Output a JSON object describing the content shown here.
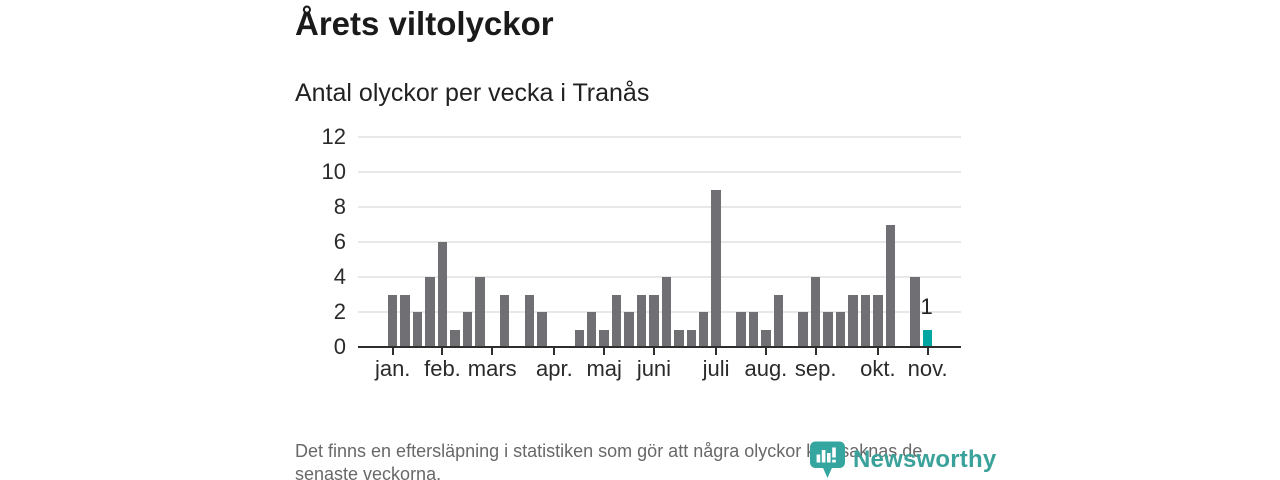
{
  "header": {
    "title": "Årets viltolyckor",
    "subtitle": "Antal olyckor per vecka i Tranås"
  },
  "chart_data": {
    "type": "bar",
    "title": "Årets viltolyckor",
    "subtitle": "Antal olyckor per vecka i Tranås",
    "x_unit": "week",
    "values": [
      3,
      3,
      2,
      4,
      6,
      1,
      2,
      4,
      0,
      3,
      0,
      3,
      2,
      0,
      0,
      1,
      2,
      1,
      3,
      2,
      3,
      3,
      4,
      1,
      1,
      2,
      9,
      0,
      2,
      2,
      1,
      3,
      0,
      2,
      4,
      2,
      2,
      3,
      3,
      3,
      7,
      0,
      4,
      1
    ],
    "highlight": {
      "index": 43,
      "value": 1,
      "label": "1"
    },
    "yticks": [
      0,
      2,
      4,
      6,
      8,
      10,
      12
    ],
    "ylim": [
      0,
      12
    ],
    "month_ticks": [
      {
        "label": "jan.",
        "week_index": 0
      },
      {
        "label": "feb.",
        "week_index": 4
      },
      {
        "label": "mars",
        "week_index": 8
      },
      {
        "label": "apr.",
        "week_index": 13
      },
      {
        "label": "maj",
        "week_index": 17
      },
      {
        "label": "juni",
        "week_index": 21
      },
      {
        "label": "juli",
        "week_index": 26
      },
      {
        "label": "aug.",
        "week_index": 30
      },
      {
        "label": "sep.",
        "week_index": 34
      },
      {
        "label": "okt.",
        "week_index": 39
      },
      {
        "label": "nov.",
        "week_index": 43
      }
    ],
    "grid": "horizontal-only",
    "legend": "none",
    "colors": {
      "bar": "#706f74",
      "highlight": "#00a6a2",
      "gridline": "#e8e8e8",
      "axis": "#2e2e2e"
    }
  },
  "footer": {
    "lines": [
      "Det finns en eftersläpning i statistiken som gör att några olyckor kan saknas de",
      "senaste veckorna."
    ]
  },
  "brand": {
    "name": "Newsworthy",
    "icon": "newsworthy-pin-barchart-icon",
    "color": "#3aa29b"
  }
}
